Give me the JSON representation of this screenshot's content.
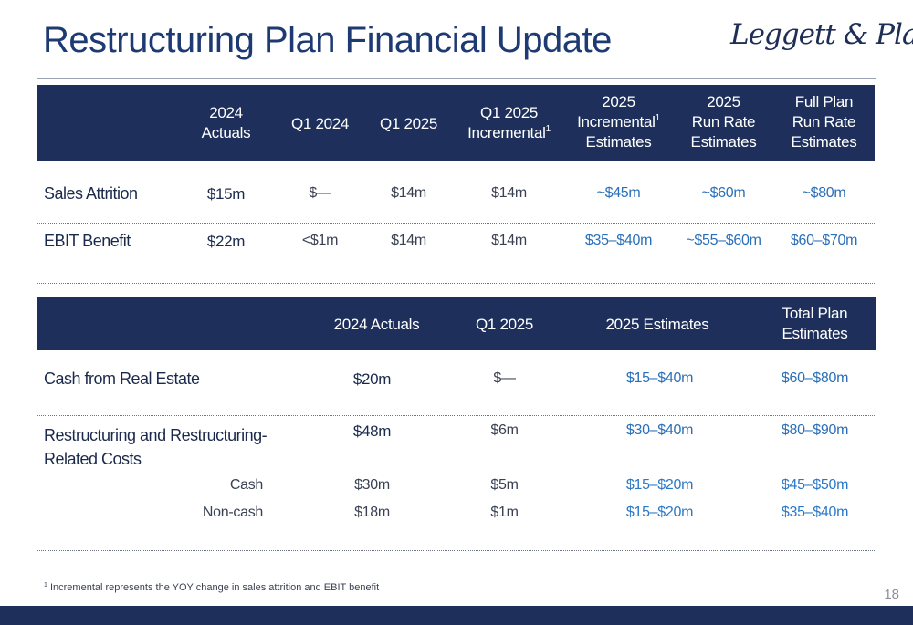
{
  "title": "Restructuring Plan Financial Update",
  "logo": {
    "text": "Leggett & Platt",
    "reg": "®"
  },
  "table1": {
    "headers": [
      {
        "lines": [
          "2024",
          "Actuals"
        ],
        "sup": ""
      },
      {
        "lines": [
          "Q1 2024"
        ],
        "sup": ""
      },
      {
        "lines": [
          "Q1 2025"
        ],
        "sup": ""
      },
      {
        "lines": [
          "Q1 2025",
          "Incremental"
        ],
        "sup": "1"
      },
      {
        "lines": [
          "2025",
          "Incremental",
          "Estimates"
        ],
        "sup": "1"
      },
      {
        "lines": [
          "2025",
          "Run Rate",
          "Estimates"
        ],
        "sup": ""
      },
      {
        "lines": [
          "Full Plan",
          "Run Rate",
          "Estimates"
        ],
        "sup": ""
      }
    ],
    "rows": [
      {
        "label": "Sales Attrition",
        "values": [
          "$15m",
          "$—",
          "$14m",
          "$14m",
          "~$45m",
          "~$60m",
          "~$80m"
        ]
      },
      {
        "label": "EBIT Benefit",
        "values": [
          "$22m",
          "<$1m",
          "$14m",
          "$14m",
          "$35–$40m",
          "~$55–$60m",
          "$60–$70m"
        ]
      }
    ]
  },
  "table2": {
    "headers": [
      {
        "lines": [
          "2024 Actuals"
        ]
      },
      {
        "lines": [
          "Q1 2025"
        ]
      },
      {
        "lines": [
          "2025 Estimates"
        ]
      },
      {
        "lines": [
          "Total Plan",
          "Estimates"
        ]
      }
    ],
    "rows": [
      {
        "label": "Cash from Real Estate",
        "values": [
          "$20m",
          "$—",
          "$15–$40m",
          "$60–$80m"
        ]
      },
      {
        "label_lines": [
          "Restructuring and Restructuring-",
          "Related Costs"
        ],
        "values": [
          "$48m",
          "$6m",
          "$30–$40m",
          "$80–$90m"
        ]
      },
      {
        "label": "Cash",
        "values": [
          "$30m",
          "$5m",
          "$15–$20m",
          "$45–$50m"
        ]
      },
      {
        "label": "Non-cash",
        "values": [
          "$18m",
          "$1m",
          "$15–$20m",
          "$35–$40m"
        ]
      }
    ]
  },
  "footnote": {
    "sup": "1",
    "text": " Incremental represents the YOY change in sales attrition and EBIT benefit"
  },
  "page_number": "18",
  "colors": {
    "navy": "#1d2f5a",
    "title": "#1e3a73",
    "blue": "#2a78c7"
  }
}
